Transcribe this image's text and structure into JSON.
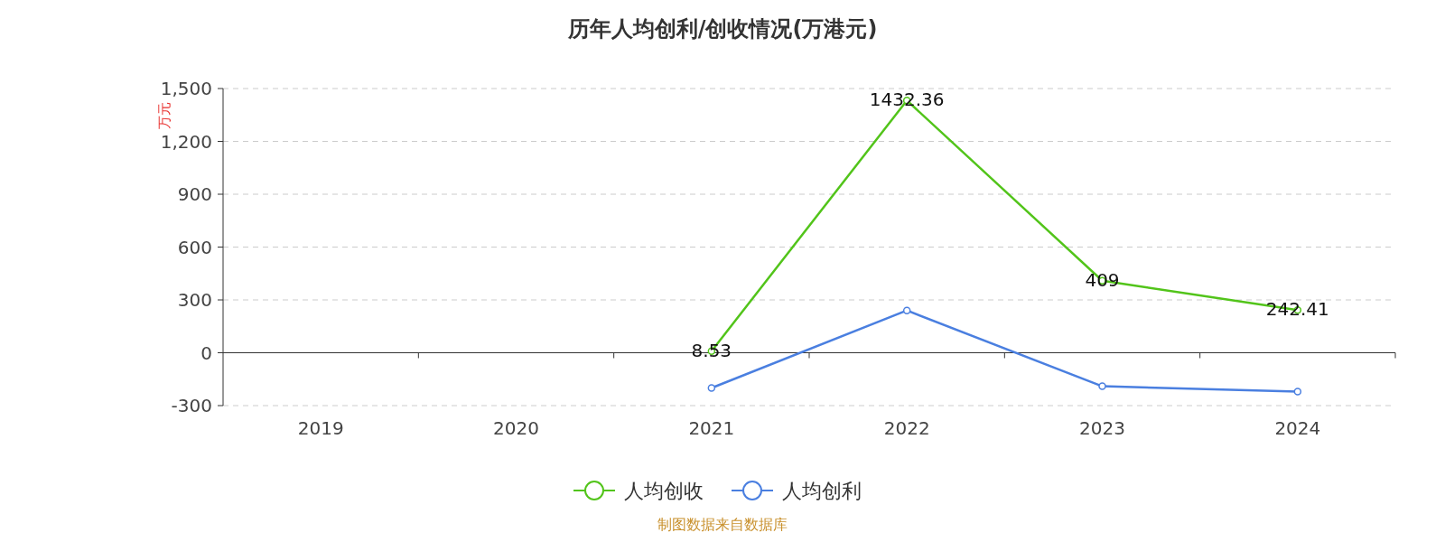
{
  "chart_data": {
    "type": "line",
    "title": "历年人均创利/创收情况(万港元)",
    "ylabel": "万元",
    "categories": [
      "2019",
      "2020",
      "2021",
      "2022",
      "2023",
      "2024"
    ],
    "series": [
      {
        "name": "人均创收",
        "color": "#52c41a",
        "values": [
          null,
          null,
          8.53,
          1432.36,
          409,
          242.41
        ],
        "value_labels": [
          null,
          null,
          "8.53",
          "1432.36",
          "409",
          "242.41"
        ]
      },
      {
        "name": "人均创利",
        "color": "#4a7fe0",
        "values": [
          null,
          null,
          -200,
          240,
          -190,
          -220
        ]
      }
    ],
    "ylim": [
      -300,
      1500
    ],
    "yticks": [
      -300,
      0,
      {
        "value": 300,
        "label": "300"
      },
      {
        "value": 600,
        "label": "600"
      },
      {
        "value": 900,
        "label": "900"
      },
      {
        "value": 1200,
        "label": "1,200"
      },
      {
        "value": 1500,
        "label": "1,500"
      }
    ],
    "grid": "y",
    "legend": "bottom",
    "marker": "circle",
    "line_style": "solid",
    "annotations": [
      "制图数据来自数据库"
    ]
  }
}
